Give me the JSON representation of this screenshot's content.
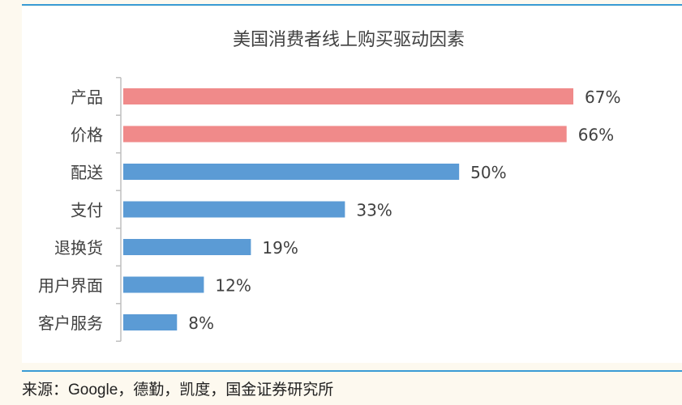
{
  "chart_data": {
    "type": "bar",
    "orientation": "horizontal",
    "title": "美国消费者线上购买驱动因素",
    "categories": [
      "产品",
      "价格",
      "配送",
      "支付",
      "退换货",
      "用户界面",
      "客户服务"
    ],
    "values": [
      67,
      66,
      50,
      33,
      19,
      12,
      8
    ],
    "data_labels": [
      "67%",
      "66%",
      "50%",
      "33%",
      "19%",
      "12%",
      "8%"
    ],
    "unit": "%",
    "xlim": [
      0,
      67
    ],
    "grid": false,
    "legend": "none",
    "bar_colors": [
      "#f08a8a",
      "#f08a8a",
      "#5b9bd5",
      "#5b9bd5",
      "#5b9bd5",
      "#5b9bd5",
      "#5b9bd5"
    ]
  },
  "source": {
    "prefix": "来源：",
    "brand": "Google",
    "suffix": "，德勤，凯度，国金证券研究所"
  },
  "colors": {
    "accent_rule": "#3a9bd5",
    "page_background": "#fdf9ef",
    "panel_background": "#ffffff",
    "axis": "#bfbfbf",
    "text": "#404040"
  }
}
